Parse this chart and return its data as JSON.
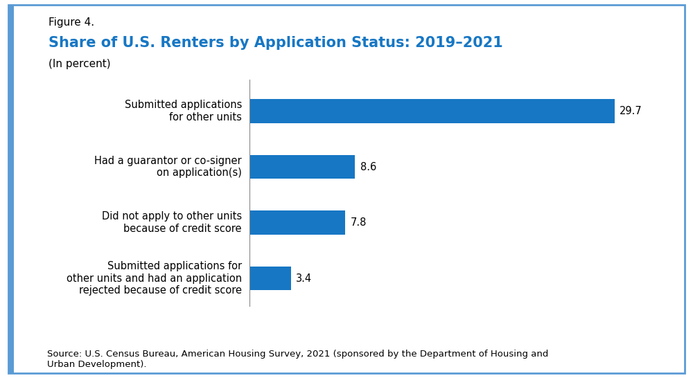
{
  "figure_label": "Figure 4.",
  "title": "Share of U.S. Renters by Application Status: 2019–2021",
  "subtitle": "(In percent)",
  "categories": [
    "Submitted applications for\nother units and had an application\nrejected because of credit score",
    "Did not apply to other units\nbecause of credit score",
    "Had a guarantor or co-signer\non application(s)",
    "Submitted applications\nfor other units"
  ],
  "values": [
    3.4,
    7.8,
    8.6,
    29.7
  ],
  "bar_color": "#1777c4",
  "value_labels": [
    "3.4",
    "7.8",
    "8.6",
    "29.7"
  ],
  "xlim": [
    0,
    33
  ],
  "source_text": "Source: U.S. Census Bureau, American Housing Survey, 2021 (sponsored by the Department of Housing and\nUrban Development).",
  "title_color": "#1777c4",
  "figure_label_color": "#000000",
  "bg_color": "#ffffff",
  "border_color": "#5b9bd5",
  "value_fontsize": 10.5,
  "label_fontsize": 10.5,
  "source_fontsize": 9.5,
  "figure_label_fontsize": 11,
  "title_fontsize": 15,
  "subtitle_fontsize": 11
}
